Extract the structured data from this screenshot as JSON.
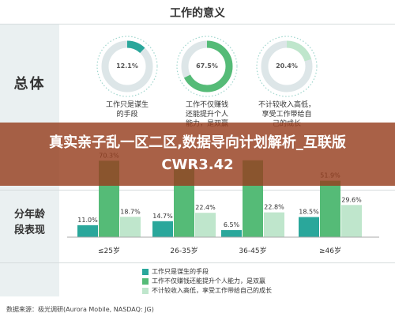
{
  "page_title": "工作的意义",
  "row_labels": {
    "overall": "总体",
    "age": "分年龄\n段表现"
  },
  "banner": "真实亲子乱一区二区,数据导向计划解析_互联版CWR3.42",
  "source": "数据来源：极光调研(Aurora Mobile, NASDAQ: JG)",
  "colors": {
    "teal": "#2aa79b",
    "green": "#55bb77",
    "light_green": "#bfe6cc",
    "track": "#dde6e8"
  },
  "chart_data": [
    {
      "type": "pie",
      "title": "总体",
      "slices": [
        {
          "label": "工作只是谋生的手段",
          "caption": "工作只是谋生\n的手段",
          "value": 12.1,
          "value_label": "12.1%",
          "color": "#2aa79b"
        },
        {
          "label": "工作不仅赚钱还能提升个人能力，是双赢",
          "caption": "工作不仅赚钱\n还能提升个人\n能力，是双赢",
          "value": 67.5,
          "value_label": "67.5%",
          "color": "#55bb77"
        },
        {
          "label": "不计较收入高低，享受工作带给自己的成长",
          "caption": "不计较收入高低，\n享受工作带给自\n己的成长",
          "value": 20.4,
          "value_label": "20.4%",
          "color": "#bfe6cc"
        }
      ]
    },
    {
      "type": "bar",
      "title": "分年龄段表现",
      "categories": [
        "≤25岁",
        "26-35岁",
        "36-45岁",
        "≥46岁"
      ],
      "series": [
        {
          "name": "工作只是谋生的手段",
          "values": [
            11.0,
            14.7,
            6.5,
            18.5
          ],
          "labels": [
            "11.0%",
            "14.7%",
            "6.5%",
            "18.5%"
          ],
          "color": "#2aa79b"
        },
        {
          "name": "工作不仅赚钱还能提升个人能力，是双赢",
          "values": [
            70.3,
            63.0,
            70.7,
            51.9
          ],
          "labels": [
            "70.3%",
            "",
            "",
            "51.9%"
          ],
          "color": "#55bb77"
        },
        {
          "name": "不计较收入高低，享受工作带给自己的成长",
          "values": [
            18.7,
            22.4,
            22.8,
            29.6
          ],
          "labels": [
            "18.7%",
            "22.4%",
            "22.8%",
            "29.6%"
          ],
          "color": "#bfe6cc"
        }
      ],
      "ylim": [
        0,
        80
      ]
    }
  ]
}
